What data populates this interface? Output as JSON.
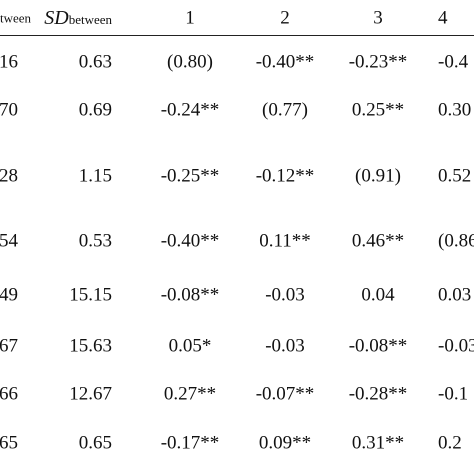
{
  "table": {
    "header": [
      "tween",
      {
        "main": "SD",
        "sub": "between"
      },
      "1",
      "2",
      "3",
      "4"
    ],
    "rows": [
      [
        "16",
        "0.63",
        "(0.80)",
        "-0.40**",
        "-0.23**",
        "-0.4"
      ],
      [
        "70",
        "0.69",
        "-0.24**",
        "(0.77)",
        "0.25**",
        "0.30"
      ],
      [
        "28",
        "1.15",
        "-0.25**",
        "-0.12**",
        "(0.91)",
        "0.52"
      ],
      [
        "54",
        "0.53",
        "-0.40**",
        "0.11**",
        "0.46**",
        "(0.86"
      ],
      [
        "49",
        "15.15",
        "-0.08**",
        "-0.03",
        "0.04",
        "0.03"
      ],
      [
        "67",
        "15.63",
        "0.05*",
        "-0.03",
        "-0.08**",
        "-0.03"
      ],
      [
        "66",
        "12.67",
        "0.27**",
        "-0.07**",
        "-0.28**",
        "-0.1"
      ],
      [
        "65",
        "0.65",
        "-0.17**",
        "0.09**",
        "0.31**",
        "0.2"
      ]
    ]
  }
}
